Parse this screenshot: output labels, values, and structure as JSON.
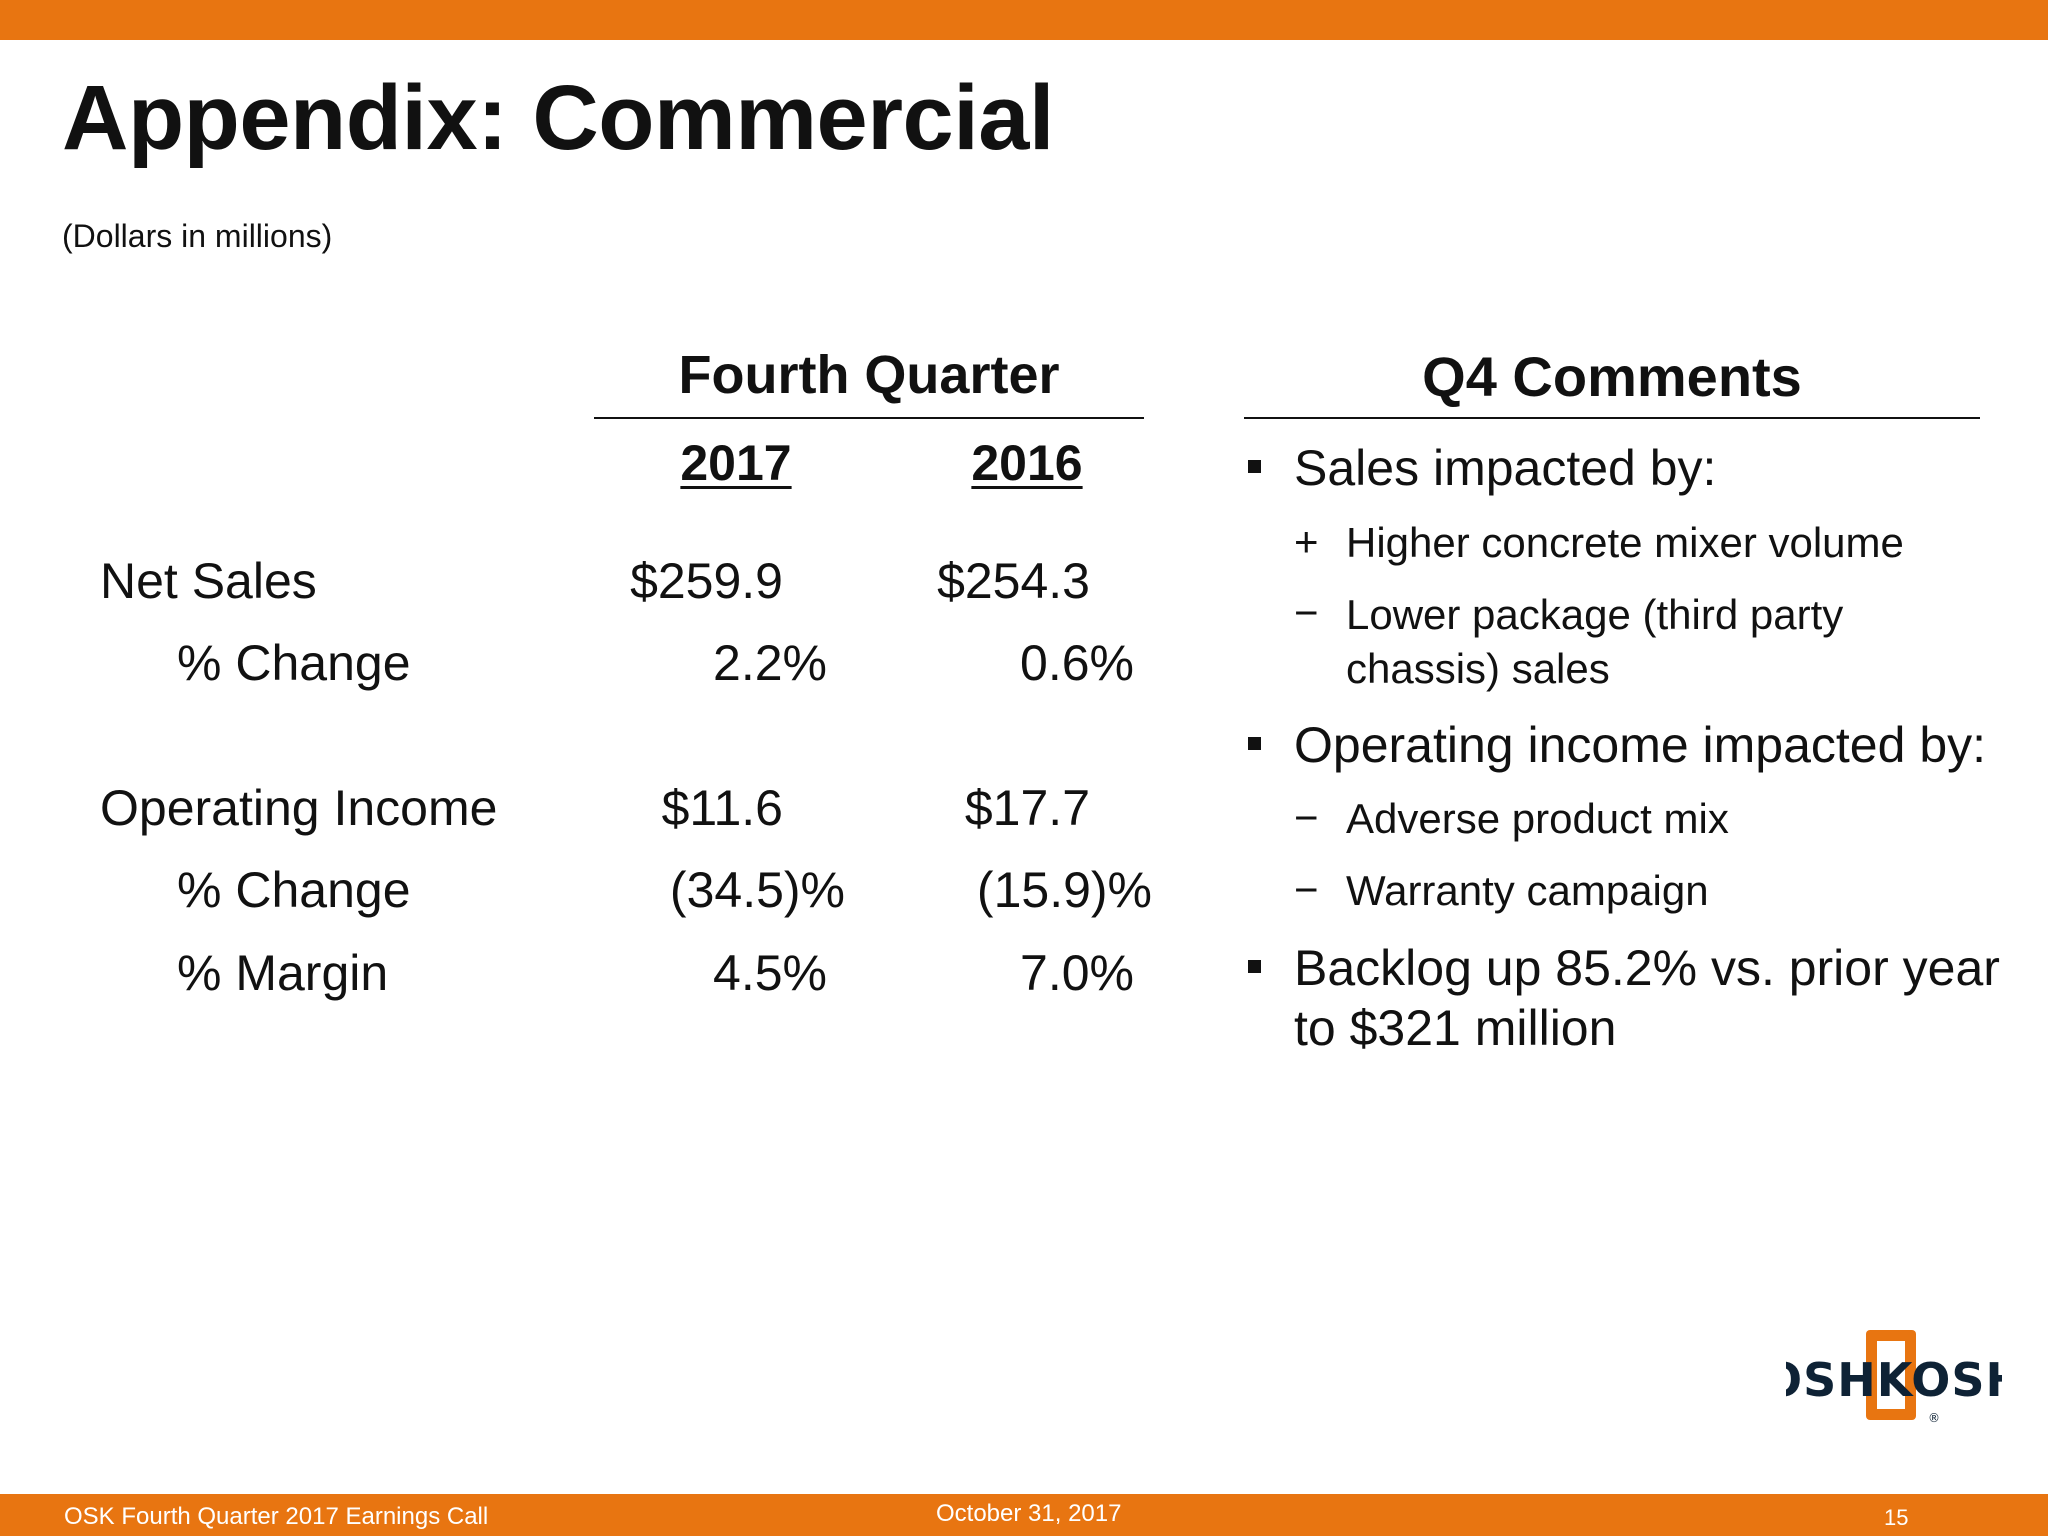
{
  "slide": {
    "title": "Appendix: Commercial",
    "subtitle": "(Dollars in millions)"
  },
  "table": {
    "header": "Fourth Quarter",
    "years": [
      "2017",
      "2016"
    ],
    "rows": [
      {
        "label": "Net Sales",
        "v2017": "$259.9",
        "v2016": "$254.3"
      },
      {
        "label": "% Change",
        "v2017": "2.2%",
        "v2016": "0.6%"
      },
      {
        "label": "Operating Income",
        "v2017": "$11.6",
        "v2016": "$17.7"
      },
      {
        "label": "% Change",
        "v2017": "(34.5)%",
        "v2016": "(15.9)%"
      },
      {
        "label": "% Margin",
        "v2017": "4.5%",
        "v2016": "7.0%"
      }
    ]
  },
  "comments": {
    "header": "Q4 Comments",
    "bullets": [
      {
        "text": "Sales impacted by:",
        "subs": [
          {
            "marker": "+",
            "lines": [
              "Higher concrete mixer volume"
            ]
          },
          {
            "marker": "−",
            "lines": [
              "Lower package (third party",
              "chassis) sales"
            ]
          }
        ]
      },
      {
        "text": "Operating income impacted by:",
        "subs": [
          {
            "marker": "−",
            "lines": [
              "Adverse product mix"
            ]
          },
          {
            "marker": "−",
            "lines": [
              "Warranty campaign"
            ]
          }
        ]
      },
      {
        "lines": [
          "Backlog up 85.2% vs. prior year",
          "to $321 million"
        ]
      }
    ]
  },
  "logo": {
    "text": "OSHKOSH",
    "registered": "®"
  },
  "footer": {
    "left": "OSK Fourth Quarter 2017 Earnings Call",
    "center": "October 31, 2017",
    "page": "15"
  },
  "colors": {
    "accent": "#E87511",
    "logo_dark": "#0E2235"
  }
}
